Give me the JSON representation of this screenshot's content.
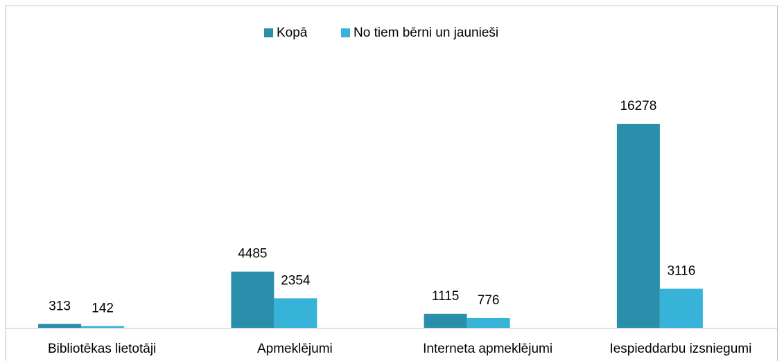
{
  "chart_data": {
    "type": "bar",
    "categories": [
      "Bibliotēkas lietotāji",
      "Apmeklējumi",
      "Interneta apmeklējumi",
      "Iespieddarbu izsniegumi"
    ],
    "series": [
      {
        "name": "Kopā",
        "color": "#2a8fab",
        "values": [
          313,
          4485,
          1115,
          16278
        ]
      },
      {
        "name": "No tiem bērni un jaunieši",
        "color": "#37b3d9",
        "values": [
          142,
          2354,
          776,
          3116
        ]
      }
    ],
    "legend": "top"
  }
}
